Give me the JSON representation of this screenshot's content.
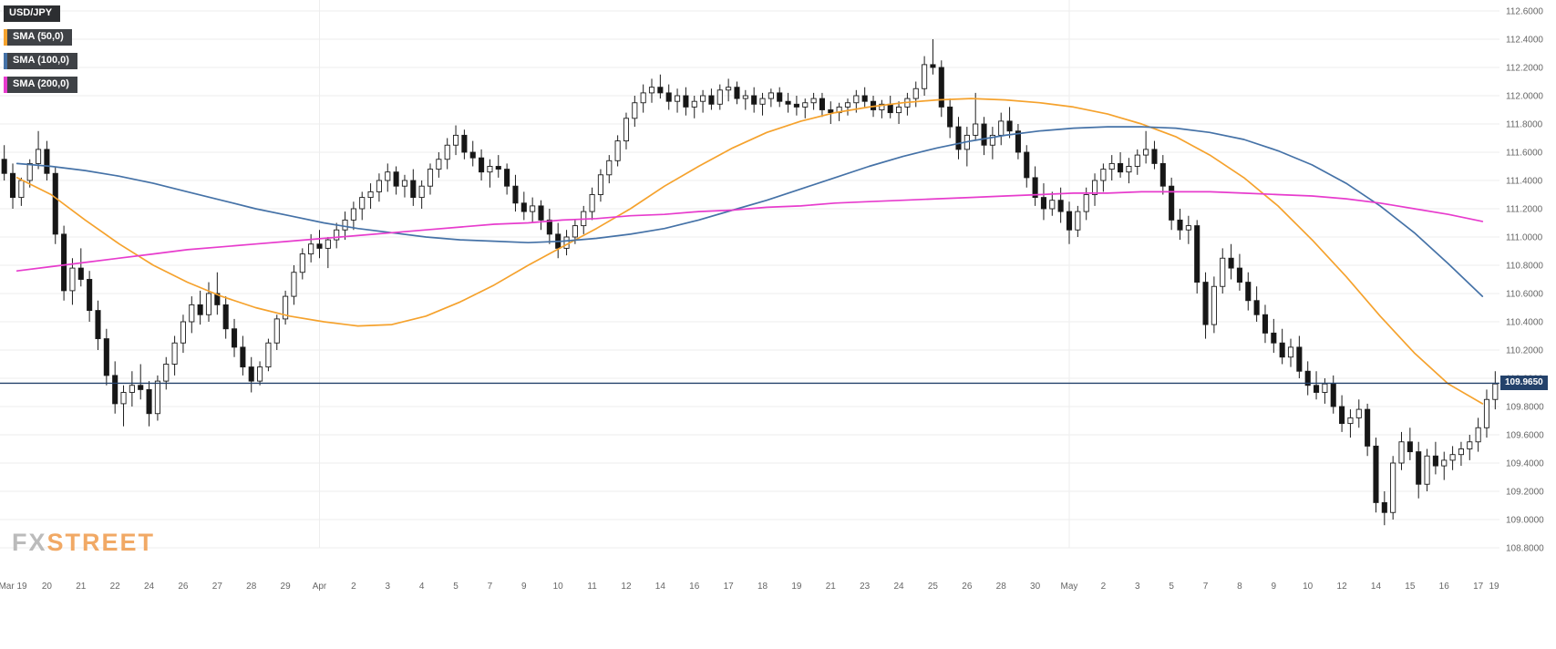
{
  "price_label": "109.9650",
  "watermark": {
    "fx": "FX",
    "street": "STREET",
    "fx_color": "#b4b4b4",
    "street_color": "#f0a055"
  },
  "legend": [
    {
      "label": "USD/JPY",
      "bg": "#2c2e31",
      "accent": null
    },
    {
      "label": "SMA (50,0)",
      "bg": "#3f4246",
      "accent": "#f5a22d"
    },
    {
      "label": "SMA (100,0)",
      "bg": "#3f4246",
      "accent": "#4572a7"
    },
    {
      "label": "SMA (200,0)",
      "bg": "#3f4246",
      "accent": "#e73ccd"
    }
  ],
  "chart_data": {
    "type": "candlestick",
    "pair": "USD/JPY",
    "current_price": 109.965,
    "bars_per_label": 4,
    "colors": {
      "up": "#ffffff",
      "down": "#161616",
      "outline": "#1c1c1c",
      "grid": "#ededed",
      "axis_text": "#666666",
      "price_line": "#24426b",
      "price_label_bg": "#24426b"
    },
    "y_axis": {
      "min": 108.8,
      "max": 112.6,
      "step": 0.2,
      "ticks": [
        "108.8000",
        "109.0000",
        "109.2000",
        "109.4000",
        "109.6000",
        "109.8000",
        "110.0000",
        "110.2000",
        "110.4000",
        "110.6000",
        "110.8000",
        "111.0000",
        "111.2000",
        "111.4000",
        "111.6000",
        "111.8000",
        "112.0000",
        "112.2000",
        "112.4000",
        "112.6000"
      ]
    },
    "x_ticks": [
      {
        "label": "Mar 19"
      },
      {
        "label": "20"
      },
      {
        "label": "21"
      },
      {
        "label": "22"
      },
      {
        "label": "24"
      },
      {
        "label": "26"
      },
      {
        "label": "27"
      },
      {
        "label": "28"
      },
      {
        "label": "29"
      },
      {
        "label": "Apr",
        "grid": true
      },
      {
        "label": "2"
      },
      {
        "label": "3"
      },
      {
        "label": "4"
      },
      {
        "label": "5"
      },
      {
        "label": "7"
      },
      {
        "label": "9"
      },
      {
        "label": "10"
      },
      {
        "label": "11"
      },
      {
        "label": "12"
      },
      {
        "label": "14"
      },
      {
        "label": "16"
      },
      {
        "label": "17"
      },
      {
        "label": "18"
      },
      {
        "label": "19"
      },
      {
        "label": "21"
      },
      {
        "label": "23"
      },
      {
        "label": "24"
      },
      {
        "label": "25"
      },
      {
        "label": "26"
      },
      {
        "label": "28"
      },
      {
        "label": "30"
      },
      {
        "label": "May",
        "grid": true
      },
      {
        "label": "2"
      },
      {
        "label": "3"
      },
      {
        "label": "5"
      },
      {
        "label": "7"
      },
      {
        "label": "8"
      },
      {
        "label": "9"
      },
      {
        "label": "10"
      },
      {
        "label": "12"
      },
      {
        "label": "14"
      },
      {
        "label": "15"
      },
      {
        "label": "16"
      },
      {
        "label": "17"
      },
      {
        "label": "19"
      }
    ],
    "candles": [
      [
        111.55,
        111.65,
        111.4,
        111.45
      ],
      [
        111.45,
        111.52,
        111.2,
        111.28
      ],
      [
        111.28,
        111.42,
        111.22,
        111.4
      ],
      [
        111.4,
        111.55,
        111.35,
        111.52
      ],
      [
        111.52,
        111.75,
        111.48,
        111.62
      ],
      [
        111.62,
        111.68,
        111.4,
        111.45
      ],
      [
        111.45,
        111.5,
        110.95,
        111.02
      ],
      [
        111.02,
        111.08,
        110.55,
        110.62
      ],
      [
        110.62,
        110.85,
        110.52,
        110.78
      ],
      [
        110.78,
        110.92,
        110.65,
        110.7
      ],
      [
        110.7,
        110.76,
        110.4,
        110.48
      ],
      [
        110.48,
        110.55,
        110.2,
        110.28
      ],
      [
        110.28,
        110.35,
        109.95,
        110.02
      ],
      [
        110.02,
        110.12,
        109.75,
        109.82
      ],
      [
        109.82,
        109.95,
        109.66,
        109.9
      ],
      [
        109.9,
        110.05,
        109.8,
        109.95
      ],
      [
        109.95,
        110.1,
        109.85,
        109.92
      ],
      [
        109.92,
        109.98,
        109.66,
        109.75
      ],
      [
        109.75,
        110.02,
        109.7,
        109.98
      ],
      [
        109.98,
        110.15,
        109.92,
        110.1
      ],
      [
        110.1,
        110.3,
        110.02,
        110.25
      ],
      [
        110.25,
        110.45,
        110.18,
        110.4
      ],
      [
        110.4,
        110.58,
        110.32,
        110.52
      ],
      [
        110.52,
        110.62,
        110.38,
        110.45
      ],
      [
        110.45,
        110.68,
        110.4,
        110.6
      ],
      [
        110.6,
        110.75,
        110.45,
        110.52
      ],
      [
        110.52,
        110.58,
        110.28,
        110.35
      ],
      [
        110.35,
        110.42,
        110.15,
        110.22
      ],
      [
        110.22,
        110.3,
        110.02,
        110.08
      ],
      [
        110.08,
        110.15,
        109.9,
        109.98
      ],
      [
        109.98,
        110.12,
        109.95,
        110.08
      ],
      [
        110.08,
        110.28,
        110.05,
        110.25
      ],
      [
        110.25,
        110.45,
        110.2,
        110.42
      ],
      [
        110.42,
        110.62,
        110.38,
        110.58
      ],
      [
        110.58,
        110.8,
        110.52,
        110.75
      ],
      [
        110.75,
        110.92,
        110.7,
        110.88
      ],
      [
        110.88,
        111.02,
        110.82,
        110.95
      ],
      [
        110.95,
        111.05,
        110.85,
        110.92
      ],
      [
        110.92,
        111.0,
        110.78,
        110.98
      ],
      [
        110.98,
        111.1,
        110.92,
        111.05
      ],
      [
        111.05,
        111.18,
        110.98,
        111.12
      ],
      [
        111.12,
        111.25,
        111.05,
        111.2
      ],
      [
        111.2,
        111.32,
        111.12,
        111.28
      ],
      [
        111.28,
        111.38,
        111.2,
        111.32
      ],
      [
        111.32,
        111.45,
        111.25,
        111.4
      ],
      [
        111.4,
        111.52,
        111.32,
        111.46
      ],
      [
        111.46,
        111.5,
        111.3,
        111.36
      ],
      [
        111.36,
        111.44,
        111.28,
        111.4
      ],
      [
        111.4,
        111.48,
        111.22,
        111.28
      ],
      [
        111.28,
        111.4,
        111.2,
        111.36
      ],
      [
        111.36,
        111.52,
        111.3,
        111.48
      ],
      [
        111.48,
        111.6,
        111.42,
        111.55
      ],
      [
        111.55,
        111.7,
        111.48,
        111.65
      ],
      [
        111.65,
        111.79,
        111.58,
        111.72
      ],
      [
        111.72,
        111.76,
        111.55,
        111.6
      ],
      [
        111.6,
        111.68,
        111.5,
        111.56
      ],
      [
        111.56,
        111.62,
        111.4,
        111.46
      ],
      [
        111.46,
        111.55,
        111.35,
        111.5
      ],
      [
        111.5,
        111.58,
        111.42,
        111.48
      ],
      [
        111.48,
        111.52,
        111.3,
        111.36
      ],
      [
        111.36,
        111.44,
        111.18,
        111.24
      ],
      [
        111.24,
        111.32,
        111.12,
        111.18
      ],
      [
        111.18,
        111.28,
        111.1,
        111.22
      ],
      [
        111.22,
        111.26,
        111.05,
        111.12
      ],
      [
        111.12,
        111.2,
        110.95,
        111.02
      ],
      [
        111.02,
        111.1,
        110.85,
        110.92
      ],
      [
        110.92,
        111.05,
        110.87,
        111.0
      ],
      [
        111.0,
        111.12,
        110.95,
        111.08
      ],
      [
        111.08,
        111.22,
        111.02,
        111.18
      ],
      [
        111.18,
        111.35,
        111.12,
        111.3
      ],
      [
        111.3,
        111.48,
        111.25,
        111.44
      ],
      [
        111.44,
        111.58,
        111.38,
        111.54
      ],
      [
        111.54,
        111.72,
        111.5,
        111.68
      ],
      [
        111.68,
        111.88,
        111.62,
        111.84
      ],
      [
        111.84,
        112.0,
        111.78,
        111.95
      ],
      [
        111.95,
        112.08,
        111.88,
        112.02
      ],
      [
        112.02,
        112.12,
        111.95,
        112.06
      ],
      [
        112.06,
        112.15,
        111.98,
        112.02
      ],
      [
        112.02,
        112.08,
        111.9,
        111.96
      ],
      [
        111.96,
        112.05,
        111.88,
        112.0
      ],
      [
        112.0,
        112.06,
        111.86,
        111.92
      ],
      [
        111.92,
        112.0,
        111.84,
        111.96
      ],
      [
        111.96,
        112.04,
        111.88,
        112.0
      ],
      [
        112.0,
        112.05,
        111.9,
        111.94
      ],
      [
        111.94,
        112.08,
        111.9,
        112.04
      ],
      [
        112.04,
        112.12,
        111.96,
        112.06
      ],
      [
        112.06,
        112.1,
        111.94,
        111.98
      ],
      [
        111.98,
        112.04,
        111.9,
        112.0
      ],
      [
        112.0,
        112.06,
        111.88,
        111.94
      ],
      [
        111.94,
        112.02,
        111.86,
        111.98
      ],
      [
        111.98,
        112.05,
        111.92,
        112.02
      ],
      [
        112.02,
        112.06,
        111.92,
        111.96
      ],
      [
        111.96,
        112.02,
        111.88,
        111.94
      ],
      [
        111.94,
        112.0,
        111.86,
        111.92
      ],
      [
        111.92,
        111.98,
        111.84,
        111.95
      ],
      [
        111.95,
        112.02,
        111.9,
        111.98
      ],
      [
        111.98,
        112.02,
        111.85,
        111.9
      ],
      [
        111.9,
        111.96,
        111.8,
        111.88
      ],
      [
        111.88,
        111.95,
        111.82,
        111.92
      ],
      [
        111.92,
        111.98,
        111.86,
        111.95
      ],
      [
        111.95,
        112.04,
        111.88,
        112.0
      ],
      [
        112.0,
        112.06,
        111.92,
        111.96
      ],
      [
        111.96,
        112.0,
        111.85,
        111.9
      ],
      [
        111.9,
        111.97,
        111.84,
        111.94
      ],
      [
        111.94,
        112.0,
        111.84,
        111.88
      ],
      [
        111.88,
        111.96,
        111.8,
        111.92
      ],
      [
        111.92,
        112.02,
        111.86,
        111.98
      ],
      [
        111.98,
        112.1,
        111.92,
        112.05
      ],
      [
        112.05,
        112.28,
        112.0,
        112.22
      ],
      [
        112.22,
        112.4,
        112.15,
        112.2
      ],
      [
        112.2,
        112.25,
        111.85,
        111.92
      ],
      [
        111.92,
        111.98,
        111.7,
        111.78
      ],
      [
        111.78,
        111.85,
        111.55,
        111.62
      ],
      [
        111.62,
        111.78,
        111.5,
        111.72
      ],
      [
        111.72,
        112.02,
        111.68,
        111.8
      ],
      [
        111.8,
        111.85,
        111.58,
        111.65
      ],
      [
        111.65,
        111.78,
        111.55,
        111.72
      ],
      [
        111.72,
        111.88,
        111.65,
        111.82
      ],
      [
        111.82,
        111.92,
        111.7,
        111.75
      ],
      [
        111.75,
        111.8,
        111.55,
        111.6
      ],
      [
        111.6,
        111.65,
        111.35,
        111.42
      ],
      [
        111.42,
        111.5,
        111.22,
        111.28
      ],
      [
        111.28,
        111.38,
        111.12,
        111.2
      ],
      [
        111.2,
        111.32,
        111.15,
        111.26
      ],
      [
        111.26,
        111.35,
        111.1,
        111.18
      ],
      [
        111.18,
        111.25,
        110.95,
        111.05
      ],
      [
        111.05,
        111.22,
        111.0,
        111.18
      ],
      [
        111.18,
        111.35,
        111.12,
        111.3
      ],
      [
        111.3,
        111.45,
        111.22,
        111.4
      ],
      [
        111.4,
        111.52,
        111.32,
        111.48
      ],
      [
        111.48,
        111.58,
        111.4,
        111.52
      ],
      [
        111.52,
        111.6,
        111.42,
        111.46
      ],
      [
        111.46,
        111.56,
        111.38,
        111.5
      ],
      [
        111.5,
        111.62,
        111.44,
        111.58
      ],
      [
        111.58,
        111.75,
        111.52,
        111.62
      ],
      [
        111.62,
        111.68,
        111.48,
        111.52
      ],
      [
        111.52,
        111.58,
        111.3,
        111.36
      ],
      [
        111.36,
        111.42,
        111.05,
        111.12
      ],
      [
        111.12,
        111.2,
        110.98,
        111.05
      ],
      [
        111.05,
        111.15,
        110.95,
        111.08
      ],
      [
        111.08,
        111.12,
        110.6,
        110.68
      ],
      [
        110.68,
        110.75,
        110.28,
        110.38
      ],
      [
        110.38,
        110.72,
        110.32,
        110.65
      ],
      [
        110.65,
        110.92,
        110.6,
        110.85
      ],
      [
        110.85,
        110.95,
        110.7,
        110.78
      ],
      [
        110.78,
        110.88,
        110.62,
        110.68
      ],
      [
        110.68,
        110.75,
        110.48,
        110.55
      ],
      [
        110.55,
        110.65,
        110.4,
        110.45
      ],
      [
        110.45,
        110.52,
        110.25,
        110.32
      ],
      [
        110.32,
        110.42,
        110.18,
        110.25
      ],
      [
        110.25,
        110.35,
        110.1,
        110.15
      ],
      [
        110.15,
        110.28,
        110.08,
        110.22
      ],
      [
        110.22,
        110.3,
        110.0,
        110.05
      ],
      [
        110.05,
        110.12,
        109.88,
        109.95
      ],
      [
        109.95,
        110.05,
        109.85,
        109.9
      ],
      [
        109.9,
        110.0,
        109.82,
        109.96
      ],
      [
        109.96,
        110.02,
        109.75,
        109.8
      ],
      [
        109.8,
        109.88,
        109.62,
        109.68
      ],
      [
        109.68,
        109.78,
        109.58,
        109.72
      ],
      [
        109.72,
        109.85,
        109.65,
        109.78
      ],
      [
        109.78,
        109.82,
        109.45,
        109.52
      ],
      [
        109.52,
        109.58,
        109.05,
        109.12
      ],
      [
        109.12,
        109.2,
        108.96,
        109.05
      ],
      [
        109.05,
        109.45,
        109.0,
        109.4
      ],
      [
        109.4,
        109.62,
        109.35,
        109.55
      ],
      [
        109.55,
        109.65,
        109.42,
        109.48
      ],
      [
        109.48,
        109.55,
        109.15,
        109.25
      ],
      [
        109.25,
        109.5,
        109.2,
        109.45
      ],
      [
        109.45,
        109.55,
        109.32,
        109.38
      ],
      [
        109.38,
        109.48,
        109.28,
        109.42
      ],
      [
        109.42,
        109.52,
        109.35,
        109.46
      ],
      [
        109.46,
        109.55,
        109.38,
        109.5
      ],
      [
        109.5,
        109.6,
        109.42,
        109.55
      ],
      [
        109.55,
        109.72,
        109.48,
        109.65
      ],
      [
        109.65,
        109.92,
        109.58,
        109.85
      ],
      [
        109.85,
        110.05,
        109.78,
        109.96
      ]
    ],
    "sma": [
      {
        "name": "SMA (50,0)",
        "period": 50,
        "color": "#f5a22d",
        "values": [
          111.42,
          111.3,
          111.12,
          110.95,
          110.8,
          110.68,
          110.58,
          110.5,
          110.44,
          110.4,
          110.37,
          110.38,
          110.44,
          110.54,
          110.66,
          110.8,
          110.93,
          111.06,
          111.2,
          111.36,
          111.5,
          111.63,
          111.74,
          111.82,
          111.88,
          111.92,
          111.95,
          111.97,
          111.98,
          111.97,
          111.95,
          111.92,
          111.87,
          111.8,
          111.71,
          111.58,
          111.42,
          111.22,
          110.98,
          110.72,
          110.44,
          110.18,
          109.96,
          109.82
        ]
      },
      {
        "name": "SMA (100,0)",
        "period": 100,
        "color": "#4572a7",
        "values": [
          111.52,
          111.5,
          111.47,
          111.43,
          111.38,
          111.32,
          111.26,
          111.2,
          111.15,
          111.1,
          111.06,
          111.03,
          111.0,
          110.98,
          110.97,
          110.96,
          110.97,
          110.99,
          111.02,
          111.06,
          111.12,
          111.19,
          111.26,
          111.34,
          111.42,
          111.5,
          111.57,
          111.63,
          111.68,
          111.72,
          111.75,
          111.77,
          111.78,
          111.78,
          111.77,
          111.74,
          111.69,
          111.61,
          111.51,
          111.38,
          111.22,
          111.03,
          110.81,
          110.58
        ]
      },
      {
        "name": "SMA (200,0)",
        "period": 200,
        "color": "#e73ccd",
        "values": [
          110.76,
          110.79,
          110.82,
          110.85,
          110.88,
          110.91,
          110.93,
          110.95,
          110.97,
          110.99,
          111.01,
          111.03,
          111.05,
          111.07,
          111.09,
          111.1,
          111.12,
          111.13,
          111.15,
          111.16,
          111.18,
          111.19,
          111.21,
          111.22,
          111.24,
          111.25,
          111.26,
          111.27,
          111.28,
          111.29,
          111.3,
          111.31,
          111.31,
          111.32,
          111.32,
          111.32,
          111.31,
          111.3,
          111.29,
          111.27,
          111.24,
          111.2,
          111.16,
          111.11
        ]
      }
    ]
  }
}
